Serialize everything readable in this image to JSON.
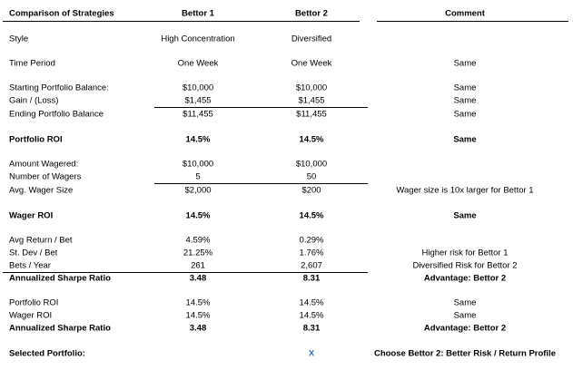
{
  "header": {
    "title": "Comparison of Strategies",
    "bettor1": "Bettor 1",
    "bettor2": "Bettor 2",
    "comment": "Comment"
  },
  "rows": [
    {
      "label": "Style",
      "bettor1": "High Concentration",
      "bettor2": "Diversified"
    },
    {
      "label": "Time Period",
      "bettor1": "One Week",
      "bettor2": "One Week",
      "comment": "Same"
    },
    {
      "label": "Starting Portfolio Balance:",
      "bettor1": "$10,000",
      "bettor2": "$10,000",
      "comment": "Same"
    },
    {
      "label": "Gain / (Loss)",
      "bettor1": "$1,455",
      "bettor2": "$1,455",
      "comment": "Same"
    },
    {
      "label": "Ending Portfolio Balance",
      "bettor1": "$11,455",
      "bettor2": "$11,455",
      "comment": "Same"
    },
    {
      "label": "Portfolio ROI",
      "bettor1": "14.5%",
      "bettor2": "14.5%",
      "comment": "Same",
      "bold": true
    },
    {
      "label": "Amount Wagered:",
      "bettor1": "$10,000",
      "bettor2": "$10,000"
    },
    {
      "label": "Number of Wagers",
      "bettor1": "5",
      "bettor2": "50"
    },
    {
      "label": "Avg. Wager Size",
      "bettor1": "$2,000",
      "bettor2": "$200",
      "comment": "Wager size is 10x larger for Bettor 1"
    },
    {
      "label": "Wager ROI",
      "bettor1": "14.5%",
      "bettor2": "14.5%",
      "comment": "Same",
      "bold": true
    },
    {
      "label": "Avg Return / Bet",
      "bettor1": "4.59%",
      "bettor2": "0.29%"
    },
    {
      "label": "St. Dev / Bet",
      "bettor1": "21.25%",
      "bettor2": "1.76%",
      "comment": "Higher risk for Bettor 1"
    },
    {
      "label": "Bets / Year",
      "bettor1": "261",
      "bettor2": "2,607",
      "comment": "Diversified Risk for Bettor 2"
    },
    {
      "label": "Annualized Sharpe Ratio",
      "bettor1": "3.48",
      "bettor2": "8.31",
      "comment": "Advantage: Bettor 2",
      "bold": true
    },
    {
      "label": "Portfolio ROI",
      "bettor1": "14.5%",
      "bettor2": "14.5%",
      "comment": "Same"
    },
    {
      "label": "Wager ROI",
      "bettor1": "14.5%",
      "bettor2": "14.5%",
      "comment": "Same"
    },
    {
      "label": "Annualized Sharpe Ratio",
      "bettor1": "3.48",
      "bettor2": "8.31",
      "comment": "Advantage: Bettor 2",
      "bold": true
    },
    {
      "label": "Selected Portfolio:",
      "bettor2": "X",
      "comment": "Choose Bettor 2: Better Risk / Return Profile",
      "bold": true
    }
  ]
}
